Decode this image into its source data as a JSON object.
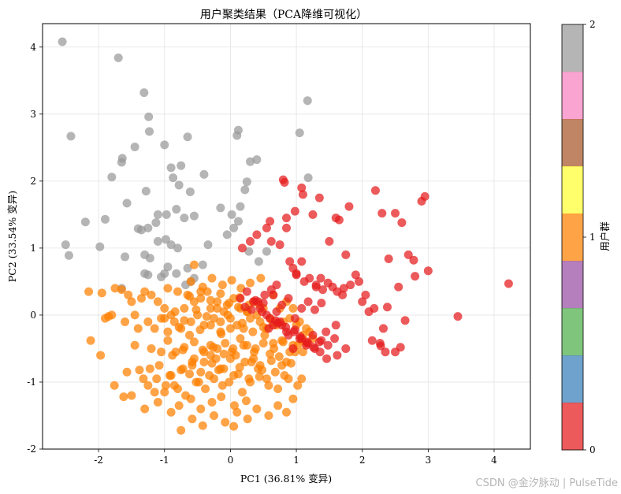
{
  "chart_data": {
    "type": "scatter",
    "title": "用户聚类结果（PCA降维可视化）",
    "xlabel": "PC1 (36.81% 变异)",
    "ylabel": "PC2 (33.54% 变异)",
    "xlim": [
      -2.85,
      4.55
    ],
    "ylim": [
      -2.0,
      4.35
    ],
    "xticks": [
      -2,
      -1,
      0,
      1,
      2,
      3,
      4
    ],
    "yticks": [
      -2,
      -1,
      0,
      1,
      2,
      3,
      4
    ],
    "grid": true,
    "colorbar": {
      "label": "用户群",
      "ticks": [
        0,
        1,
        2
      ],
      "colors": [
        "#e41a1c",
        "#377eb8",
        "#4daf4a",
        "#984ea3",
        "#ff7f00",
        "#ffff33",
        "#a65628",
        "#f781bf",
        "#999999"
      ]
    },
    "series": [
      {
        "cluster": 2,
        "color": "#999999",
        "x": [
          -2.55,
          -1.7,
          -2.42,
          -1.31,
          -1.24,
          -1.23,
          -1.0,
          -0.9,
          -0.65,
          -1.45,
          -1.65,
          -1.64,
          -1.8,
          -0.87,
          -0.75,
          -0.78,
          -0.4,
          -0.61,
          -1.28,
          -1.57,
          -1.1,
          -0.97,
          -1.13,
          -1.35,
          -1.4,
          -0.98,
          -0.82,
          -0.7,
          -0.55,
          -2.5,
          -2.45,
          -2.2,
          -1.98,
          -1.9,
          -1.6,
          -1.3,
          -1.25,
          -1.3,
          -1.22,
          -1.0,
          -1.05,
          -0.95,
          -0.65,
          -0.42,
          -0.34,
          -0.55,
          -0.6,
          -0.68,
          -0.82,
          -1.25,
          -1.1,
          -0.9,
          -0.8,
          -1.65,
          0.1,
          0.12,
          0.3,
          0.4,
          1.05,
          1.17,
          1.18,
          0.25,
          0.02,
          0.15,
          0.22,
          0.12,
          0.05,
          -0.15,
          -0.05,
          0.43,
          0.28,
          0.55
        ],
        "y": [
          4.08,
          3.84,
          2.67,
          3.32,
          2.96,
          2.74,
          2.54,
          2.2,
          2.66,
          2.51,
          2.28,
          2.34,
          2.06,
          2.05,
          2.23,
          1.94,
          2.1,
          1.84,
          1.85,
          1.67,
          1.5,
          1.5,
          1.38,
          1.27,
          1.29,
          1.13,
          1.58,
          1.45,
          1.48,
          1.05,
          0.89,
          1.39,
          1.02,
          1.43,
          0.87,
          0.9,
          0.6,
          0.62,
          0.85,
          0.62,
          0.57,
          0.72,
          0.7,
          0.75,
          1.05,
          0.55,
          0.5,
          0.45,
          0.62,
          1.3,
          1.1,
          1.05,
          1.0,
          0.4,
          2.68,
          2.76,
          2.29,
          2.32,
          2.72,
          3.2,
          2.05,
          1.99,
          1.5,
          1.62,
          1.87,
          1.4,
          1.3,
          1.6,
          1.2,
          0.8,
          0.95,
          0.95
        ]
      },
      {
        "cluster": 1,
        "color": "#ff7f00",
        "x": [
          -2.15,
          -1.95,
          -1.9,
          -1.85,
          -1.8,
          -1.75,
          -1.65,
          -1.6,
          -1.55,
          -1.5,
          -1.45,
          -1.4,
          -1.35,
          -1.3,
          -1.25,
          -1.2,
          -1.15,
          -1.1,
          -1.05,
          -1.0,
          -0.95,
          -0.9,
          -0.85,
          -0.8,
          -0.75,
          -0.7,
          -0.65,
          -0.6,
          -0.55,
          -0.5,
          -0.45,
          -0.4,
          -0.35,
          -0.3,
          -0.25,
          -0.2,
          -0.15,
          -0.1,
          -0.05,
          0.0,
          0.05,
          0.1,
          0.15,
          0.2,
          0.25,
          0.3,
          0.35,
          0.4,
          0.45,
          0.5,
          0.55,
          0.6,
          0.65,
          0.7,
          0.75,
          0.8,
          0.85,
          0.9,
          0.95,
          1.0,
          1.05,
          1.1,
          1.15,
          1.2,
          1.25,
          -2.12,
          -1.97,
          -1.76,
          -1.57,
          -1.38,
          -1.45,
          -1.2,
          -1.05,
          -0.95,
          -0.83,
          -0.7,
          -0.55,
          -0.42,
          -0.3,
          -0.2,
          -0.08,
          0.02,
          0.15,
          0.25,
          0.38,
          0.52,
          0.65,
          0.78,
          0.9,
          1.02,
          -1.5,
          -1.25,
          -1.12,
          -0.92,
          -0.72,
          -0.58,
          -0.4,
          -0.22,
          -0.1,
          0.08,
          0.22,
          0.35,
          0.45,
          0.6,
          0.74,
          0.85,
          0.98,
          -1.62,
          -1.32,
          -1.15,
          -0.98,
          -0.8,
          -0.62,
          -0.48,
          -0.32,
          -0.18,
          -0.02,
          0.12,
          0.28,
          0.42,
          0.55,
          0.68,
          0.82,
          -1.0,
          -0.85,
          -0.68,
          -0.52,
          -0.38,
          -0.25,
          -0.12,
          0.05,
          0.18,
          0.3,
          0.44,
          0.58,
          0.72,
          0.88,
          1.02,
          -1.22,
          -1.08,
          -0.9,
          -0.75,
          -0.58,
          -0.45,
          -0.28,
          -0.15,
          0.0,
          0.14,
          0.32,
          0.48,
          0.62,
          0.78,
          0.92,
          -0.88,
          -0.72,
          -0.55,
          -0.4,
          -0.26,
          -0.1,
          0.04,
          0.2,
          0.36,
          0.5,
          0.66,
          0.8,
          0.95,
          1.08,
          -0.95,
          -0.78,
          -0.62,
          -0.46,
          -0.3,
          -0.14,
          0.0,
          0.18,
          0.34,
          0.5,
          0.64,
          -1.0,
          -0.84,
          -0.7,
          -0.52,
          -0.36,
          -0.2,
          -0.04,
          0.12,
          0.26,
          0.44,
          -0.6,
          -0.42,
          -0.28,
          -0.12,
          0.02,
          0.16,
          0.3,
          0.46,
          -1.3,
          -1.1,
          -0.9,
          -0.78,
          -0.6,
          -0.45,
          -0.28,
          -0.14,
          0.06,
          0.24,
          -0.62,
          -0.45,
          -0.3,
          -0.15,
          -0.02,
          0.14,
          0.28,
          -0.75,
          -0.58,
          -0.42,
          -0.25,
          -0.08,
          0.1,
          0.26,
          0.4,
          0.58,
          0.72,
          0.85,
          0.95,
          1.08,
          1.1,
          1.15,
          0.05,
          -0.55,
          -0.3,
          -0.15
        ],
        "y": [
          0.35,
          0.33,
          -0.05,
          -0.02,
          0.0,
          0.4,
          0.38,
          -0.1,
          0.3,
          0.2,
          0.0,
          -0.2,
          0.25,
          0.35,
          -0.1,
          0.3,
          -0.2,
          0.2,
          -0.05,
          0.1,
          0.4,
          0.0,
          -0.1,
          0.35,
          -0.2,
          0.1,
          0.3,
          -0.1,
          0.2,
          0.0,
          0.25,
          -0.15,
          0.35,
          0.1,
          -0.05,
          0.2,
          -0.1,
          0.05,
          0.15,
          -0.05,
          0.25,
          -0.15,
          0.1,
          -0.2,
          0.05,
          -0.05,
          0.2,
          0.0,
          -0.1,
          0.1,
          -0.2,
          -0.05,
          0.3,
          -0.15,
          0.1,
          -0.1,
          0.2,
          -0.05,
          0.1,
          -0.15,
          -0.1,
          -0.3,
          -0.2,
          -0.25,
          -0.35,
          -0.38,
          -0.6,
          -1.05,
          -0.85,
          -0.82,
          -0.45,
          -0.5,
          -0.55,
          -0.38,
          -0.55,
          -0.48,
          -0.4,
          -0.52,
          -0.6,
          -0.5,
          -0.42,
          -0.55,
          -0.35,
          -0.45,
          -0.5,
          -0.3,
          -0.42,
          -0.38,
          -0.55,
          -0.45,
          -1.2,
          -1.05,
          -0.95,
          -0.9,
          -0.8,
          -0.75,
          -0.7,
          -0.65,
          -0.8,
          -0.6,
          -0.7,
          -0.65,
          -0.75,
          -0.58,
          -0.62,
          -0.7,
          -0.55,
          -1.22,
          -0.95,
          -1.15,
          -1.05,
          -1.1,
          -0.88,
          -1.0,
          -0.9,
          -0.82,
          -1.0,
          -0.88,
          -0.95,
          -0.8,
          -0.95,
          -0.85,
          -0.9,
          -1.15,
          -1.05,
          -1.2,
          -1.0,
          -1.1,
          -0.95,
          -1.05,
          -0.9,
          -1.15,
          -1.0,
          -0.92,
          -1.05,
          -1.1,
          -0.95,
          -1.05,
          -0.8,
          -0.75,
          -0.9,
          -0.82,
          -0.7,
          -0.85,
          -0.72,
          -0.8,
          -0.65,
          -0.78,
          -0.7,
          -0.82,
          -0.68,
          -0.75,
          -0.72,
          -0.6,
          -0.52,
          -0.65,
          -0.55,
          -0.48,
          -0.58,
          -0.5,
          -0.45,
          -0.55,
          -0.42,
          -0.5,
          -0.4,
          -0.45,
          -0.38,
          -0.25,
          -0.18,
          -0.3,
          -0.22,
          -0.15,
          -0.28,
          -0.2,
          -0.12,
          -0.25,
          -0.18,
          -0.1,
          -0.05,
          0.05,
          -0.08,
          0.08,
          -0.02,
          0.1,
          0.0,
          0.12,
          0.05,
          0.15,
          0.5,
          0.42,
          0.55,
          0.45,
          0.52,
          0.4,
          0.48,
          0.55,
          -1.4,
          -1.3,
          -1.45,
          -1.35,
          -1.25,
          -1.4,
          -1.3,
          -1.22,
          -1.35,
          -1.28,
          0.28,
          0.35,
          0.22,
          0.32,
          0.18,
          0.26,
          0.15,
          -1.72,
          -1.55,
          -1.65,
          -1.5,
          -1.6,
          -1.45,
          -1.55,
          -1.4,
          -1.5,
          -1.35,
          -1.45,
          -1.25,
          -0.95,
          -0.55,
          -0.42,
          -1.66,
          0.75,
          -0.45,
          -0.25
        ]
      },
      {
        "cluster": 0,
        "color": "#e41a1c",
        "x": [
          0.8,
          0.82,
          1.08,
          1.1,
          0.98,
          0.85,
          0.6,
          0.55,
          0.4,
          0.3,
          0.18,
          0.62,
          0.75,
          0.85,
          0.95,
          1.08,
          1.25,
          1.35,
          1.5,
          1.6,
          1.65,
          1.75,
          1.8,
          1.9,
          2.0,
          2.1,
          2.2,
          2.3,
          2.4,
          2.5,
          2.6,
          2.7,
          2.8,
          2.9,
          2.95,
          3.0,
          3.45,
          4.22,
          2.35,
          2.28,
          2.32,
          1.3,
          1.37,
          1.48,
          1.62,
          1.72,
          1.82,
          1.95,
          2.05,
          2.18,
          2.38,
          2.55,
          2.65,
          2.78,
          0.9,
          1.0,
          1.12,
          1.2,
          1.3,
          1.4,
          1.55,
          1.7,
          1.6,
          1.62,
          1.75,
          1.45,
          1.35,
          1.25,
          1.15,
          1.05,
          0.95,
          0.85,
          0.75,
          0.65,
          0.55,
          0.45,
          0.35,
          0.25,
          0.15,
          0.32,
          0.5,
          0.65,
          0.7,
          0.78,
          0.88,
          0.98,
          1.08,
          1.18,
          1.28,
          1.38,
          0.58,
          0.68,
          0.78,
          0.88,
          0.98,
          1.08,
          1.18,
          1.28,
          1.38,
          1.48,
          1.58,
          0.48,
          0.6,
          0.72,
          0.84,
          0.96,
          1.06,
          1.16,
          1.26,
          1.36,
          1.46,
          2.15,
          2.27,
          2.5,
          2.58,
          0.22,
          0.38,
          0.52,
          0.62,
          0.7,
          0.42,
          1.0
        ],
        "y": [
          2.02,
          1.98,
          1.9,
          1.8,
          1.55,
          1.45,
          1.4,
          1.3,
          1.2,
          1.1,
          1.0,
          1.1,
          1.05,
          1.3,
          0.7,
          0.8,
          1.5,
          1.75,
          1.1,
          1.45,
          1.42,
          0.9,
          1.62,
          0.6,
          0.2,
          0.05,
          1.86,
          1.52,
          0.84,
          1.52,
          1.38,
          0.9,
          0.58,
          1.7,
          1.77,
          0.66,
          -0.02,
          0.47,
          -0.55,
          -0.46,
          -0.2,
          0.42,
          0.55,
          0.48,
          0.35,
          0.4,
          0.45,
          0.5,
          0.3,
          0.1,
          0.12,
          0.42,
          -0.08,
          0.82,
          0.8,
          0.6,
          0.5,
          0.55,
          0.45,
          0.38,
          0.42,
          0.3,
          -0.15,
          -0.6,
          -0.5,
          -0.25,
          -0.4,
          -0.3,
          -0.45,
          -0.35,
          -0.5,
          -0.25,
          -0.1,
          -0.15,
          0.0,
          0.1,
          0.2,
          0.35,
          0.25,
          0.08,
          0.18,
          0.3,
          0.05,
          0.15,
          0.25,
          -0.05,
          0.1,
          0.2,
          0.08,
          0.18,
          -0.2,
          -0.08,
          -0.15,
          -0.3,
          -0.22,
          -0.35,
          -0.42,
          -0.5,
          -0.38,
          -0.45,
          -0.35,
          0.05,
          -0.05,
          -0.12,
          -0.18,
          -0.25,
          -0.32,
          -0.4,
          -0.48,
          -0.55,
          -0.65,
          -0.38,
          -0.42,
          -0.55,
          -0.48,
          0.12,
          0.22,
          0.3,
          0.38,
          0.45,
          0.2,
          0.62
        ]
      }
    ]
  },
  "watermark": "CSDN @金汐脉动 | PulseTide"
}
